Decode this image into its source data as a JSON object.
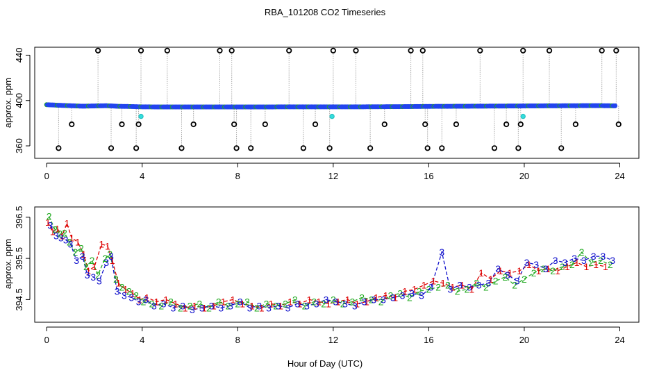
{
  "title": "RBA_101208  CO2 Timeseries",
  "xlabel": "Hour of Day (UTC)",
  "colors": {
    "series1": "#dd0000",
    "series2": "#22aa22",
    "series3": "#1111cc",
    "fill_blue": "#2244ee",
    "fill_cyan": "#33dddd",
    "outlier": "#000000",
    "dropline": "#aaaaaa"
  },
  "chart_data": [
    {
      "type": "scatter",
      "ylabel": "approx. ppm",
      "xlim": [
        -0.5,
        24.8
      ],
      "ylim": [
        349,
        447
      ],
      "xticks": [
        0,
        4,
        8,
        12,
        16,
        20,
        24
      ],
      "yticks": [
        360,
        400,
        440
      ],
      "grid": false,
      "baseline": {
        "x": [
          0.0,
          0.5,
          1.0,
          1.5,
          2.0,
          2.5,
          3.0,
          3.5,
          4.0,
          5.0,
          6.0,
          7.0,
          8.0,
          9.0,
          10.0,
          11.0,
          12.0,
          13.0,
          14.0,
          15.0,
          16.0,
          17.0,
          18.0,
          19.0,
          20.0,
          21.0,
          22.0,
          23.0,
          23.8
        ],
        "y": [
          396.3,
          395.8,
          395.4,
          395.0,
          395.2,
          395.4,
          394.9,
          394.7,
          394.4,
          394.3,
          394.3,
          394.3,
          394.3,
          394.3,
          394.4,
          394.4,
          394.4,
          394.4,
          394.5,
          394.6,
          394.8,
          394.9,
          395.0,
          395.1,
          395.2,
          395.3,
          395.4,
          395.5,
          395.3
        ]
      },
      "outliers": {
        "x": [
          0.5,
          1.05,
          2.15,
          2.7,
          3.15,
          3.75,
          3.85,
          3.95,
          5.05,
          5.65,
          6.15,
          7.25,
          7.75,
          7.85,
          7.95,
          8.55,
          9.15,
          10.15,
          10.75,
          11.25,
          11.85,
          12.0,
          12.95,
          13.55,
          14.15,
          15.25,
          15.75,
          15.85,
          15.95,
          16.55,
          17.15,
          18.15,
          18.75,
          19.25,
          19.75,
          19.85,
          19.95,
          21.05,
          21.55,
          22.15,
          23.25,
          23.85,
          23.95
        ],
        "y": [
          358,
          379,
          444,
          358,
          379,
          358,
          379,
          444,
          444,
          358,
          379,
          444,
          444,
          379,
          358,
          358,
          379,
          444,
          358,
          379,
          358,
          444,
          444,
          358,
          379,
          444,
          444,
          379,
          358,
          358,
          379,
          444,
          358,
          379,
          358,
          379,
          444,
          444,
          358,
          379,
          444,
          444,
          379
        ]
      },
      "cyan_points": {
        "x": [
          3.95,
          11.95,
          19.95
        ],
        "y": [
          386,
          386,
          386
        ]
      }
    },
    {
      "type": "scatter",
      "ylabel": "approx. ppm",
      "xlim": [
        -0.5,
        24.8
      ],
      "ylim": [
        393.95,
        396.75
      ],
      "xticks": [
        0,
        4,
        8,
        12,
        16,
        20,
        24
      ],
      "yticks": [
        394.5,
        395.5,
        396.5
      ],
      "grid": false,
      "series": [
        {
          "name": "1",
          "x": [
            0.05,
            0.25,
            0.45,
            0.65,
            0.85,
            1.05,
            1.3,
            1.55,
            1.75,
            2.0,
            2.3,
            2.55,
            2.75,
            3.0,
            3.3,
            3.6,
            3.9,
            4.2,
            4.6,
            5.0,
            5.4,
            5.8,
            6.2,
            6.6,
            7.0,
            7.4,
            7.8,
            8.2,
            8.6,
            9.0,
            9.4,
            9.8,
            10.2,
            10.6,
            11.0,
            11.4,
            11.8,
            12.2,
            12.6,
            13.0,
            13.4,
            13.8,
            14.2,
            14.6,
            15.0,
            15.4,
            15.8,
            16.2,
            16.6,
            17.0,
            17.4,
            17.8,
            18.2,
            18.6,
            19.0,
            19.4,
            19.8,
            20.2,
            20.6,
            21.0,
            21.4,
            21.8,
            22.2,
            22.6,
            23.0,
            23.4
          ],
          "y": [
            396.38,
            396.15,
            396.22,
            396.05,
            396.35,
            396.0,
            395.9,
            395.6,
            395.2,
            395.3,
            395.85,
            395.8,
            395.45,
            394.9,
            394.75,
            394.65,
            394.5,
            394.55,
            394.45,
            394.5,
            394.4,
            394.3,
            394.35,
            394.3,
            394.35,
            394.45,
            394.5,
            394.4,
            394.35,
            394.3,
            394.4,
            394.35,
            394.45,
            394.4,
            394.5,
            394.45,
            394.4,
            394.45,
            394.5,
            394.4,
            394.45,
            394.55,
            394.6,
            394.55,
            394.7,
            394.75,
            394.85,
            394.95,
            394.9,
            394.8,
            394.85,
            394.75,
            395.15,
            395.0,
            395.2,
            395.15,
            395.2,
            395.35,
            395.2,
            395.25,
            395.2,
            395.3,
            395.4,
            395.3,
            395.35,
            395.3
          ]
        },
        {
          "name": "2",
          "x": [
            0.1,
            0.35,
            0.55,
            0.75,
            0.95,
            1.2,
            1.45,
            1.65,
            1.9,
            2.15,
            2.45,
            2.65,
            2.9,
            3.15,
            3.45,
            3.75,
            4.05,
            4.4,
            4.8,
            5.2,
            5.6,
            6.0,
            6.4,
            6.8,
            7.2,
            7.6,
            8.0,
            8.4,
            8.8,
            9.2,
            9.6,
            10.0,
            10.4,
            10.8,
            11.2,
            11.6,
            12.0,
            12.4,
            12.8,
            13.2,
            13.6,
            14.0,
            14.4,
            14.8,
            15.2,
            15.6,
            16.0,
            16.4,
            16.8,
            17.2,
            17.6,
            18.0,
            18.4,
            18.8,
            19.2,
            19.6,
            20.0,
            20.4,
            20.8,
            21.2,
            21.6,
            22.0,
            22.4,
            22.8,
            23.2,
            23.6
          ],
          "y": [
            396.52,
            396.2,
            396.1,
            396.12,
            395.9,
            395.65,
            395.75,
            395.3,
            395.45,
            395.1,
            395.5,
            395.6,
            395.0,
            394.8,
            394.7,
            394.6,
            394.45,
            394.4,
            394.35,
            394.45,
            394.3,
            394.35,
            394.4,
            394.3,
            394.45,
            394.35,
            394.4,
            394.45,
            394.3,
            394.4,
            394.35,
            394.4,
            394.5,
            394.35,
            394.45,
            394.4,
            394.5,
            394.4,
            394.45,
            394.55,
            394.5,
            394.45,
            394.6,
            394.65,
            394.55,
            394.7,
            394.75,
            394.8,
            394.85,
            394.7,
            394.75,
            394.9,
            394.8,
            394.95,
            395.05,
            394.85,
            395.0,
            395.15,
            395.25,
            395.2,
            395.3,
            395.35,
            395.65,
            395.4,
            395.45,
            395.35
          ]
        },
        {
          "name": "3",
          "x": [
            0.15,
            0.4,
            0.6,
            0.8,
            1.0,
            1.25,
            1.5,
            1.7,
            1.95,
            2.2,
            2.5,
            2.7,
            2.95,
            3.25,
            3.55,
            3.85,
            4.15,
            4.5,
            4.9,
            5.3,
            5.7,
            6.1,
            6.5,
            6.9,
            7.3,
            7.7,
            8.1,
            8.5,
            8.9,
            9.3,
            9.7,
            10.1,
            10.5,
            10.9,
            11.3,
            11.7,
            12.1,
            12.5,
            12.9,
            13.3,
            13.7,
            14.1,
            14.5,
            14.9,
            15.3,
            15.7,
            16.1,
            16.55,
            16.9,
            17.3,
            17.7,
            18.1,
            18.5,
            18.9,
            19.3,
            19.7,
            20.1,
            20.5,
            20.9,
            21.3,
            21.7,
            22.1,
            22.5,
            22.9,
            23.3,
            23.7
          ],
          "y": [
            396.3,
            396.05,
            396.0,
            395.95,
            395.85,
            395.45,
            395.55,
            395.1,
            395.05,
            394.95,
            395.4,
            395.55,
            394.7,
            394.6,
            394.55,
            394.45,
            394.5,
            394.35,
            394.4,
            394.3,
            394.35,
            394.25,
            394.3,
            394.35,
            394.3,
            394.35,
            394.45,
            394.3,
            394.35,
            394.3,
            394.35,
            394.3,
            394.4,
            394.35,
            394.4,
            394.5,
            394.45,
            394.4,
            394.35,
            394.45,
            394.5,
            394.5,
            394.55,
            394.6,
            394.65,
            394.6,
            394.8,
            395.65,
            394.75,
            394.85,
            394.8,
            394.85,
            394.9,
            395.25,
            395.1,
            394.95,
            395.4,
            395.35,
            395.25,
            395.45,
            395.4,
            395.5,
            395.45,
            395.55,
            395.55,
            395.45
          ]
        }
      ]
    }
  ]
}
